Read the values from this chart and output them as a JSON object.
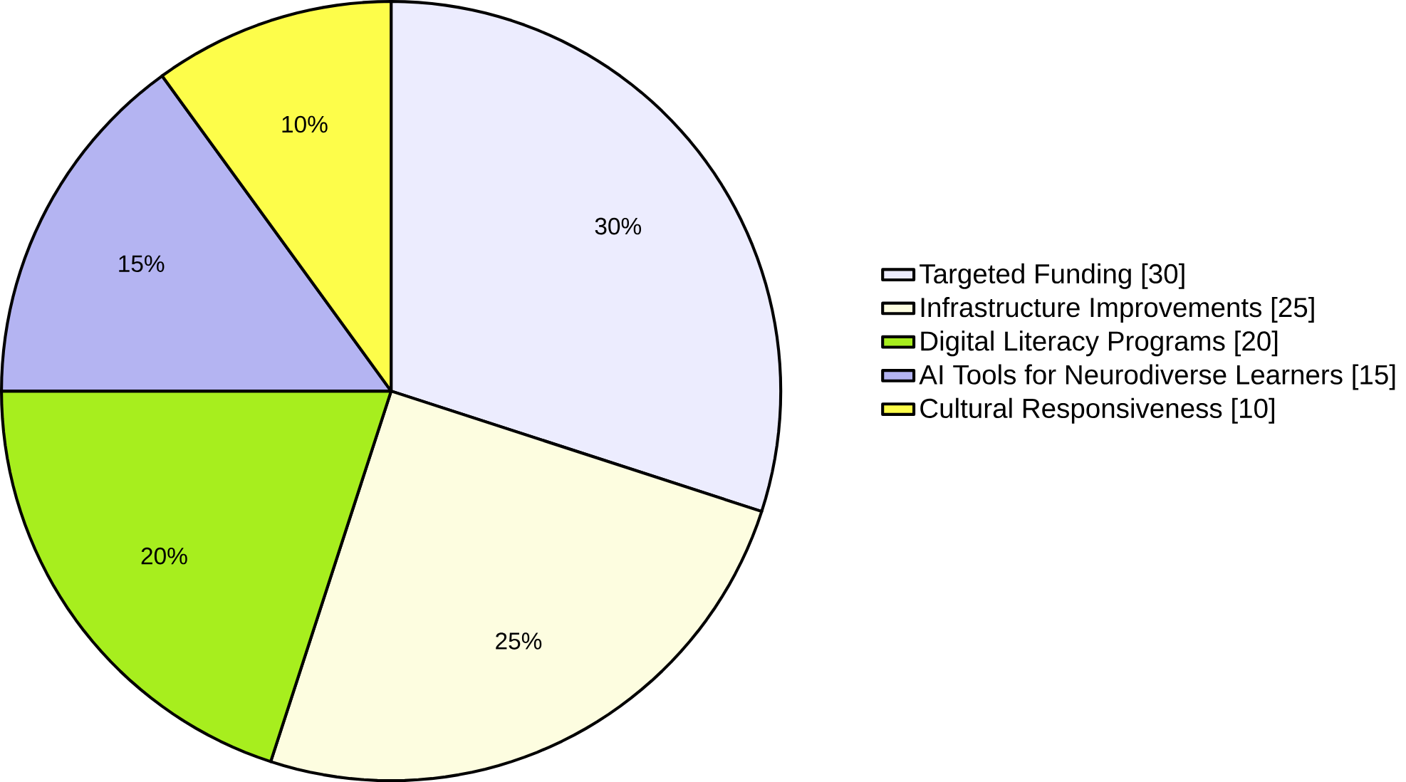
{
  "chart_data": {
    "type": "pie",
    "categories": [
      "Targeted Funding [30]",
      "Infrastructure Improvements [25]",
      "Digital Literacy Programs [20]",
      "AI Tools for Neurodiverse Learners [15]",
      "Cultural Responsiveness [10]"
    ],
    "values": [
      30,
      25,
      20,
      15,
      10
    ],
    "value_labels": [
      "30%",
      "25%",
      "20%",
      "15%",
      "10%"
    ],
    "colors": [
      "#ececfe",
      "#fdfde0",
      "#a7ee1e",
      "#b4b4f2",
      "#fdfd4a"
    ],
    "legend": "right"
  }
}
